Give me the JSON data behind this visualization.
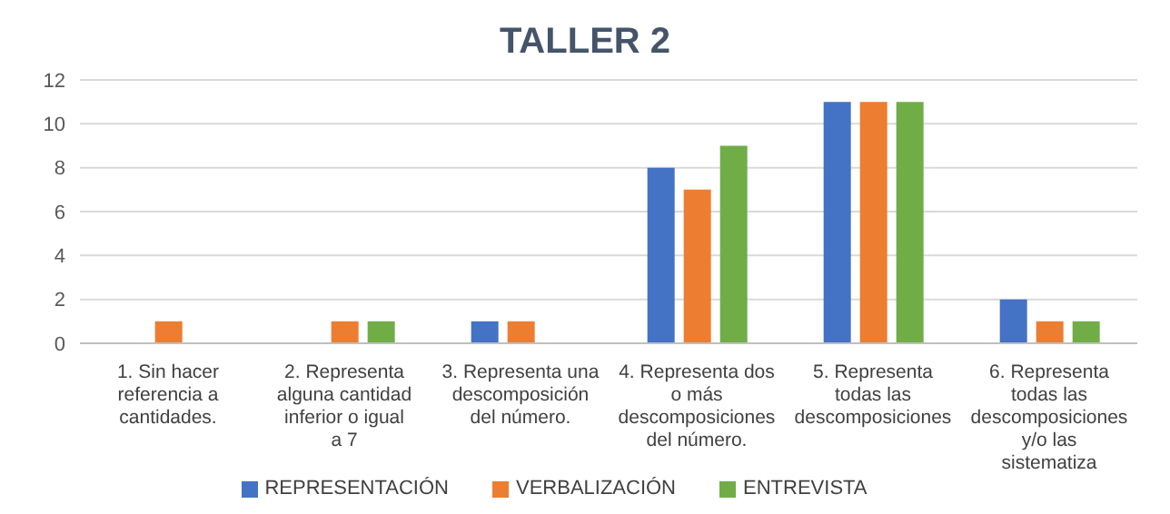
{
  "chart_data": {
    "type": "bar",
    "title": "TALLER 2",
    "categories": [
      "1. Sin hacer referencia a cantidades.",
      "2. Representa alguna cantidad inferior o igual a 7",
      "3. Representa una descomposición del número.",
      "4. Representa dos o más descomposiciones del número.",
      "5. Representa todas las descomposiciones",
      "6. Representa todas las descomposiciones y/o las sistematiza"
    ],
    "series": [
      {
        "name": "REPRESENTACIÓN",
        "color": "#4472c4",
        "values": [
          0,
          0,
          1,
          8,
          11,
          2
        ]
      },
      {
        "name": "VERBALIZACIÓN",
        "color": "#ed7d31",
        "values": [
          1,
          1,
          1,
          7,
          11,
          1
        ]
      },
      {
        "name": "ENTREVISTA",
        "color": "#70ad47",
        "values": [
          0,
          1,
          0,
          9,
          11,
          1
        ]
      }
    ],
    "ylim": [
      0,
      12
    ],
    "yticks": [
      0,
      2,
      4,
      6,
      8,
      10,
      12
    ],
    "grid": "y",
    "legend": "bottom"
  }
}
